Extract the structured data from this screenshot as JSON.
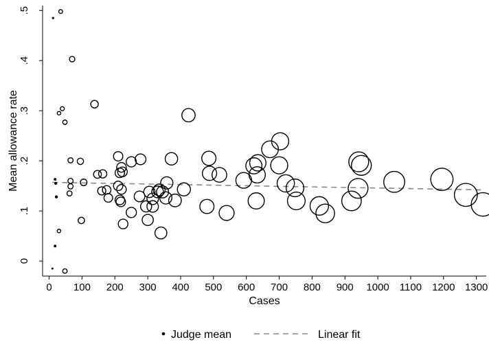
{
  "chart_data": {
    "type": "scatter",
    "xlabel": "Cases",
    "ylabel": "Mean allowance rate",
    "xlim": [
      -20,
      1330
    ],
    "ylim": [
      -0.03,
      0.51
    ],
    "x_ticks": [
      0,
      100,
      200,
      300,
      400,
      500,
      600,
      700,
      800,
      900,
      1000,
      1100,
      1200,
      1300
    ],
    "x_tick_labels": [
      "0",
      "100",
      "200",
      "300",
      "400",
      "500",
      "600",
      "700",
      "800",
      "900",
      "1000",
      "1100",
      "1200",
      "1300"
    ],
    "y_ticks": [
      0,
      0.1,
      0.2,
      0.3,
      0.4,
      0.5
    ],
    "y_tick_labels": [
      "0",
      ".1",
      ".2",
      ".3",
      ".4",
      ".5"
    ],
    "marker_size": "proportional to cases",
    "grid": false,
    "legend": {
      "placement": "bottom-center",
      "entries": [
        {
          "label": "Judge mean",
          "symbol": "hollow circle"
        },
        {
          "label": "Linear fit",
          "symbol": "dashed line",
          "color": "#888888"
        }
      ]
    },
    "series": [
      {
        "name": "Judge mean",
        "points": [
          [
            12,
            0.485
          ],
          [
            35,
            0.498
          ],
          [
            70,
            0.403
          ],
          [
            138,
            0.313
          ],
          [
            40,
            0.304
          ],
          [
            30,
            0.295
          ],
          [
            48,
            0.277
          ],
          [
            65,
            0.201
          ],
          [
            95,
            0.199
          ],
          [
            18,
            0.163
          ],
          [
            65,
            0.16
          ],
          [
            20,
            0.155
          ],
          [
            105,
            0.157
          ],
          [
            65,
            0.149
          ],
          [
            62,
            0.135
          ],
          [
            22,
            0.128
          ],
          [
            30,
            0.06
          ],
          [
            98,
            0.081
          ],
          [
            18,
            0.03
          ],
          [
            10,
            -0.015
          ],
          [
            48,
            -0.02
          ],
          [
            163,
            0.174
          ],
          [
            147,
            0.173
          ],
          [
            210,
            0.209
          ],
          [
            220,
            0.187
          ],
          [
            215,
            0.176
          ],
          [
            223,
            0.178
          ],
          [
            210,
            0.15
          ],
          [
            220,
            0.143
          ],
          [
            160,
            0.14
          ],
          [
            175,
            0.142
          ],
          [
            180,
            0.126
          ],
          [
            215,
            0.122
          ],
          [
            218,
            0.118
          ],
          [
            225,
            0.074
          ],
          [
            250,
            0.198
          ],
          [
            278,
            0.203
          ],
          [
            275,
            0.129
          ],
          [
            250,
            0.097
          ],
          [
            295,
            0.109
          ],
          [
            305,
            0.138
          ],
          [
            315,
            0.124
          ],
          [
            315,
            0.109
          ],
          [
            300,
            0.082
          ],
          [
            330,
            0.138
          ],
          [
            335,
            0.142
          ],
          [
            345,
            0.138
          ],
          [
            340,
            0.056
          ],
          [
            355,
            0.126
          ],
          [
            358,
            0.156
          ],
          [
            372,
            0.204
          ],
          [
            383,
            0.121
          ],
          [
            410,
            0.143
          ],
          [
            424,
            0.291
          ],
          [
            486,
            0.205
          ],
          [
            488,
            0.175
          ],
          [
            518,
            0.172
          ],
          [
            480,
            0.109
          ],
          [
            540,
            0.096
          ],
          [
            592,
            0.161
          ],
          [
            623,
            0.19
          ],
          [
            635,
            0.196
          ],
          [
            633,
            0.172
          ],
          [
            630,
            0.12
          ],
          [
            672,
            0.223
          ],
          [
            703,
            0.239
          ],
          [
            700,
            0.191
          ],
          [
            720,
            0.155
          ],
          [
            748,
            0.146
          ],
          [
            752,
            0.12
          ],
          [
            822,
            0.11
          ],
          [
            840,
            0.095
          ],
          [
            920,
            0.12
          ],
          [
            940,
            0.145
          ],
          [
            942,
            0.198
          ],
          [
            950,
            0.191
          ],
          [
            1050,
            0.158
          ],
          [
            1195,
            0.163
          ],
          [
            1268,
            0.132
          ],
          [
            1320,
            0.113
          ]
        ]
      },
      {
        "name": "Linear fit",
        "x": [
          10,
          1325
        ],
        "y": [
          0.157,
          0.142
        ]
      }
    ]
  }
}
